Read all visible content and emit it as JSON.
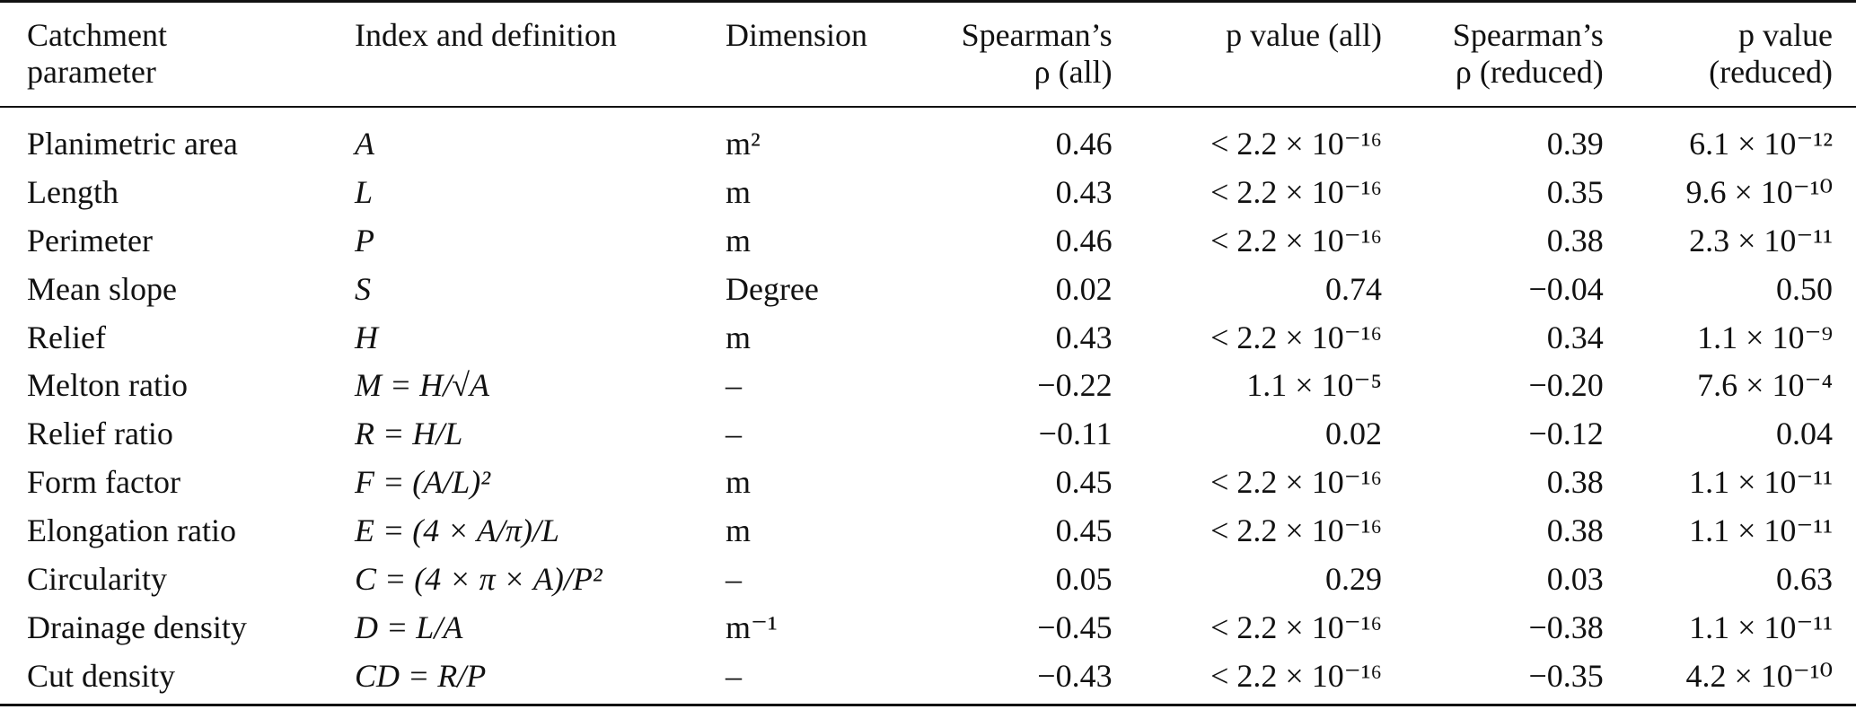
{
  "table": {
    "headers": {
      "c1": [
        "Catchment",
        "parameter"
      ],
      "c2": [
        "Index and definition"
      ],
      "c3": [
        "Dimension"
      ],
      "c4": [
        "Spearman’s",
        "ρ (all)"
      ],
      "c5": [
        "p value (all)"
      ],
      "c6": [
        "Spearman’s",
        "ρ (reduced)"
      ],
      "c7": [
        "p value",
        "(reduced)"
      ]
    },
    "rows": [
      {
        "parameter": "Planimetric area",
        "index": "A",
        "dimension": "m²",
        "rho_all": "0.46",
        "p_all": "< 2.2 × 10⁻¹⁶",
        "rho_reduced": "0.39",
        "p_reduced": "6.1 × 10⁻¹²"
      },
      {
        "parameter": "Length",
        "index": "L",
        "dimension": "m",
        "rho_all": "0.43",
        "p_all": "< 2.2 × 10⁻¹⁶",
        "rho_reduced": "0.35",
        "p_reduced": "9.6 × 10⁻¹⁰"
      },
      {
        "parameter": "Perimeter",
        "index": "P",
        "dimension": "m",
        "rho_all": "0.46",
        "p_all": "< 2.2 × 10⁻¹⁶",
        "rho_reduced": "0.38",
        "p_reduced": "2.3 × 10⁻¹¹"
      },
      {
        "parameter": "Mean slope",
        "index": "S",
        "dimension": "Degree",
        "rho_all": "0.02",
        "p_all": "0.74",
        "rho_reduced": "−0.04",
        "p_reduced": "0.50"
      },
      {
        "parameter": "Relief",
        "index": "H",
        "dimension": "m",
        "rho_all": "0.43",
        "p_all": "< 2.2 × 10⁻¹⁶",
        "rho_reduced": "0.34",
        "p_reduced": "1.1 × 10⁻⁹"
      },
      {
        "parameter": "Melton ratio",
        "index": "M = H/√A",
        "dimension": "–",
        "rho_all": "−0.22",
        "p_all": "1.1 × 10⁻⁵",
        "rho_reduced": "−0.20",
        "p_reduced": "7.6 × 10⁻⁴"
      },
      {
        "parameter": "Relief ratio",
        "index": "R = H/L",
        "dimension": "–",
        "rho_all": "−0.11",
        "p_all": "0.02",
        "rho_reduced": "−0.12",
        "p_reduced": "0.04"
      },
      {
        "parameter": "Form factor",
        "index": "F = (A/L)²",
        "dimension": "m",
        "rho_all": "0.45",
        "p_all": "< 2.2 × 10⁻¹⁶",
        "rho_reduced": "0.38",
        "p_reduced": "1.1 × 10⁻¹¹"
      },
      {
        "parameter": "Elongation ratio",
        "index": "E = (4 × A/π)/L",
        "dimension": "m",
        "rho_all": "0.45",
        "p_all": "< 2.2 × 10⁻¹⁶",
        "rho_reduced": "0.38",
        "p_reduced": "1.1 × 10⁻¹¹"
      },
      {
        "parameter": "Circularity",
        "index": "C = (4 × π × A)/P²",
        "dimension": "–",
        "rho_all": "0.05",
        "p_all": "0.29",
        "rho_reduced": "0.03",
        "p_reduced": "0.63"
      },
      {
        "parameter": "Drainage density",
        "index": "D = L/A",
        "dimension": "m⁻¹",
        "rho_all": "−0.45",
        "p_all": "< 2.2 × 10⁻¹⁶",
        "rho_reduced": "−0.38",
        "p_reduced": "1.1 × 10⁻¹¹"
      },
      {
        "parameter": "Cut density",
        "index": "CD = R/P",
        "dimension": "–",
        "rho_all": "−0.43",
        "p_all": "< 2.2 × 10⁻¹⁶",
        "rho_reduced": "−0.35",
        "p_reduced": "4.2 × 10⁻¹⁰"
      }
    ]
  }
}
